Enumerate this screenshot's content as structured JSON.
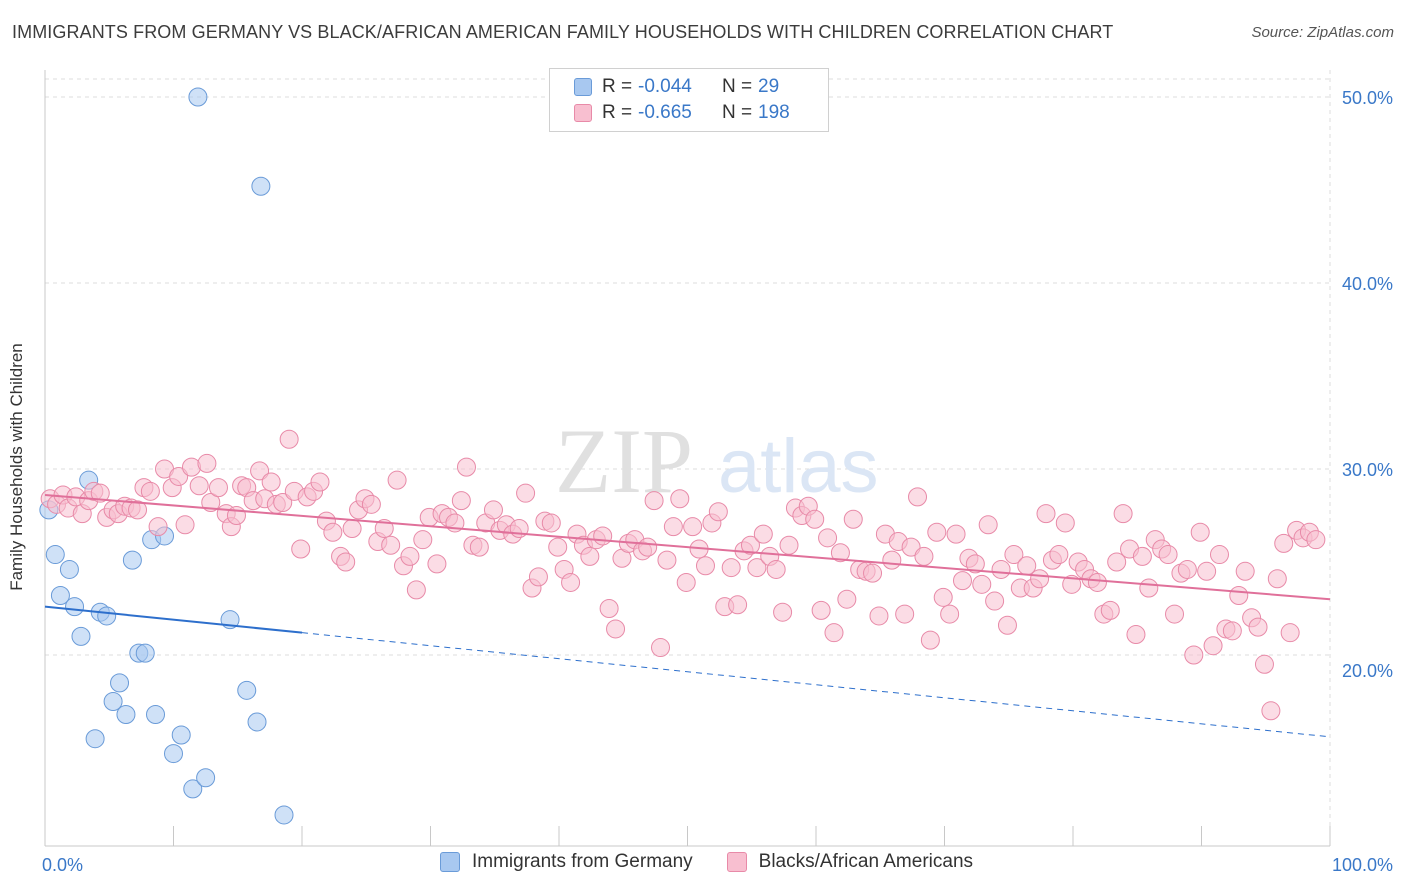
{
  "header": {
    "title": "IMMIGRANTS FROM GERMANY VS BLACK/AFRICAN AMERICAN FAMILY HOUSEHOLDS WITH CHILDREN CORRELATION CHART",
    "source": "Source: ZipAtlas.com"
  },
  "watermark": {
    "zip": "ZIP",
    "atlas": "atlas"
  },
  "legend": {
    "rows": [
      {
        "r_label": "R =",
        "r_value": "-0.044",
        "n_label": "N =",
        "n_value": "29",
        "color": "#a8c8f0",
        "border": "#6a9bd8"
      },
      {
        "r_label": "R =",
        "r_value": "-0.665",
        "n_label": "N =",
        "n_value": "198",
        "color": "#f8bfd0",
        "border": "#e88aa8"
      }
    ]
  },
  "bottom_legend": {
    "items": [
      {
        "label": "Immigrants from Germany",
        "color": "#a8c8f0",
        "border": "#6a9bd8"
      },
      {
        "label": "Blacks/African Americans",
        "color": "#f8bfd0",
        "border": "#e88aa8"
      }
    ]
  },
  "chart_data": {
    "type": "scatter",
    "title": "IMMIGRANTS FROM GERMANY VS BLACK/AFRICAN AMERICAN FAMILY HOUSEHOLDS WITH CHILDREN CORRELATION CHART",
    "xlabel": "",
    "ylabel": "Family Households with Children",
    "xlim": [
      0,
      100
    ],
    "ylim": [
      10,
      52
    ],
    "x_ticks": [
      {
        "value": 0,
        "label": "0.0%"
      },
      {
        "value": 100,
        "label": "100.0%"
      }
    ],
    "x_minor_ticks": [
      10,
      20,
      30,
      40,
      50,
      60,
      70,
      80,
      90
    ],
    "y_ticks": [
      {
        "value": 20,
        "label": "20.0%"
      },
      {
        "value": 30,
        "label": "30.0%"
      },
      {
        "value": 40,
        "label": "40.0%"
      },
      {
        "value": 50,
        "label": "50.0%"
      }
    ],
    "grid": true,
    "series": [
      {
        "name": "Immigrants from Germany",
        "color": "#a8c8f0",
        "stroke": "#6a9bd8",
        "line_color": "#2d6fcc",
        "trend": {
          "x0": 0,
          "y0": 22.6,
          "x1": 100,
          "y1": 15.6,
          "solid_until": 20
        },
        "points": [
          [
            0.3,
            27.8
          ],
          [
            0.8,
            25.4
          ],
          [
            1.2,
            23.2
          ],
          [
            1.9,
            24.6
          ],
          [
            2.3,
            22.6
          ],
          [
            2.8,
            21.0
          ],
          [
            3.4,
            29.4
          ],
          [
            3.9,
            15.5
          ],
          [
            4.3,
            22.3
          ],
          [
            4.8,
            22.1
          ],
          [
            5.3,
            17.5
          ],
          [
            5.8,
            18.5
          ],
          [
            6.3,
            16.8
          ],
          [
            6.8,
            25.1
          ],
          [
            7.3,
            20.1
          ],
          [
            7.8,
            20.1
          ],
          [
            8.3,
            26.2
          ],
          [
            8.6,
            16.8
          ],
          [
            9.3,
            26.4
          ],
          [
            10.0,
            14.7
          ],
          [
            10.6,
            15.7
          ],
          [
            11.5,
            12.8
          ],
          [
            11.9,
            50.0
          ],
          [
            12.5,
            13.4
          ],
          [
            14.4,
            21.9
          ],
          [
            15.7,
            18.1
          ],
          [
            16.5,
            16.4
          ],
          [
            16.8,
            45.2
          ],
          [
            18.6,
            11.4
          ]
        ]
      },
      {
        "name": "Blacks/African Americans",
        "color": "#f8bfd0",
        "stroke": "#e88aa8",
        "line_color": "#e0709a",
        "trend": {
          "x0": 0,
          "y0": 28.6,
          "x1": 100,
          "y1": 23.0,
          "solid_until": 100
        },
        "points": [
          [
            0.4,
            28.4
          ],
          [
            0.9,
            28.1
          ],
          [
            1.4,
            28.6
          ],
          [
            1.8,
            27.9
          ],
          [
            2.4,
            28.5
          ],
          [
            2.9,
            27.6
          ],
          [
            3.4,
            28.3
          ],
          [
            3.8,
            28.8
          ],
          [
            4.3,
            28.7
          ],
          [
            4.8,
            27.4
          ],
          [
            5.3,
            27.8
          ],
          [
            5.7,
            27.6
          ],
          [
            6.2,
            28.0
          ],
          [
            6.7,
            27.9
          ],
          [
            7.2,
            27.8
          ],
          [
            7.7,
            29.0
          ],
          [
            8.2,
            28.8
          ],
          [
            8.8,
            26.9
          ],
          [
            9.3,
            30.0
          ],
          [
            9.9,
            29.0
          ],
          [
            10.4,
            29.6
          ],
          [
            10.9,
            27.0
          ],
          [
            11.4,
            30.1
          ],
          [
            12.0,
            29.1
          ],
          [
            12.6,
            30.3
          ],
          [
            12.9,
            28.2
          ],
          [
            13.5,
            29.0
          ],
          [
            14.1,
            27.6
          ],
          [
            14.5,
            26.9
          ],
          [
            14.9,
            27.5
          ],
          [
            15.3,
            29.1
          ],
          [
            15.7,
            29.0
          ],
          [
            16.2,
            28.3
          ],
          [
            16.7,
            29.9
          ],
          [
            17.1,
            28.4
          ],
          [
            17.6,
            29.3
          ],
          [
            18.0,
            28.1
          ],
          [
            18.5,
            28.2
          ],
          [
            19.0,
            31.6
          ],
          [
            19.4,
            28.8
          ],
          [
            19.9,
            25.7
          ],
          [
            20.4,
            28.5
          ],
          [
            20.9,
            28.8
          ],
          [
            21.4,
            29.3
          ],
          [
            21.9,
            27.2
          ],
          [
            22.4,
            26.6
          ],
          [
            23.0,
            25.3
          ],
          [
            23.4,
            25.0
          ],
          [
            23.9,
            26.8
          ],
          [
            24.4,
            27.8
          ],
          [
            24.9,
            28.4
          ],
          [
            25.4,
            28.1
          ],
          [
            25.9,
            26.1
          ],
          [
            26.4,
            26.8
          ],
          [
            26.9,
            25.9
          ],
          [
            27.4,
            29.4
          ],
          [
            27.9,
            24.8
          ],
          [
            28.4,
            25.3
          ],
          [
            28.9,
            23.5
          ],
          [
            29.4,
            26.2
          ],
          [
            29.9,
            27.4
          ],
          [
            30.5,
            24.9
          ],
          [
            30.9,
            27.6
          ],
          [
            31.4,
            27.4
          ],
          [
            31.9,
            27.1
          ],
          [
            32.4,
            28.3
          ],
          [
            32.8,
            30.1
          ],
          [
            33.3,
            25.9
          ],
          [
            33.8,
            25.8
          ],
          [
            34.3,
            27.1
          ],
          [
            34.9,
            27.8
          ],
          [
            35.4,
            26.7
          ],
          [
            35.9,
            27.0
          ],
          [
            36.4,
            26.5
          ],
          [
            36.9,
            26.8
          ],
          [
            37.4,
            28.7
          ],
          [
            37.9,
            23.6
          ],
          [
            38.4,
            24.2
          ],
          [
            38.9,
            27.2
          ],
          [
            39.4,
            27.1
          ],
          [
            39.9,
            25.8
          ],
          [
            40.4,
            24.6
          ],
          [
            40.9,
            23.9
          ],
          [
            41.4,
            26.5
          ],
          [
            41.9,
            25.9
          ],
          [
            42.4,
            25.3
          ],
          [
            42.9,
            26.2
          ],
          [
            43.4,
            26.4
          ],
          [
            43.9,
            22.5
          ],
          [
            44.4,
            21.4
          ],
          [
            44.9,
            25.2
          ],
          [
            45.4,
            26.0
          ],
          [
            45.9,
            26.2
          ],
          [
            46.5,
            25.6
          ],
          [
            46.9,
            25.8
          ],
          [
            47.4,
            28.3
          ],
          [
            47.9,
            20.4
          ],
          [
            48.4,
            25.1
          ],
          [
            48.9,
            26.9
          ],
          [
            49.4,
            28.4
          ],
          [
            49.9,
            23.9
          ],
          [
            50.4,
            26.9
          ],
          [
            50.9,
            25.7
          ],
          [
            51.4,
            24.8
          ],
          [
            51.9,
            27.1
          ],
          [
            52.4,
            27.7
          ],
          [
            52.9,
            22.6
          ],
          [
            53.4,
            24.7
          ],
          [
            53.9,
            22.7
          ],
          [
            54.4,
            25.6
          ],
          [
            54.9,
            25.9
          ],
          [
            55.4,
            24.7
          ],
          [
            55.9,
            26.5
          ],
          [
            56.4,
            25.3
          ],
          [
            56.9,
            24.6
          ],
          [
            57.4,
            22.3
          ],
          [
            57.9,
            25.9
          ],
          [
            58.4,
            27.9
          ],
          [
            58.9,
            27.5
          ],
          [
            59.4,
            28.0
          ],
          [
            59.9,
            27.3
          ],
          [
            60.4,
            22.4
          ],
          [
            60.9,
            26.3
          ],
          [
            61.4,
            21.2
          ],
          [
            61.9,
            25.5
          ],
          [
            62.4,
            23.0
          ],
          [
            62.9,
            27.3
          ],
          [
            63.4,
            24.6
          ],
          [
            63.9,
            24.5
          ],
          [
            64.4,
            24.4
          ],
          [
            64.9,
            22.1
          ],
          [
            65.4,
            26.5
          ],
          [
            65.9,
            25.1
          ],
          [
            66.4,
            26.1
          ],
          [
            66.9,
            22.2
          ],
          [
            67.4,
            25.8
          ],
          [
            67.9,
            28.5
          ],
          [
            68.4,
            25.3
          ],
          [
            68.9,
            20.8
          ],
          [
            69.4,
            26.6
          ],
          [
            69.9,
            23.1
          ],
          [
            70.4,
            22.2
          ],
          [
            70.9,
            26.5
          ],
          [
            71.4,
            24.0
          ],
          [
            71.9,
            25.2
          ],
          [
            72.4,
            24.9
          ],
          [
            72.9,
            23.8
          ],
          [
            73.4,
            27.0
          ],
          [
            73.9,
            22.9
          ],
          [
            74.4,
            24.6
          ],
          [
            74.9,
            21.6
          ],
          [
            75.4,
            25.4
          ],
          [
            75.9,
            23.6
          ],
          [
            76.4,
            24.8
          ],
          [
            76.9,
            23.6
          ],
          [
            77.4,
            24.1
          ],
          [
            77.9,
            27.6
          ],
          [
            78.4,
            25.1
          ],
          [
            78.9,
            25.4
          ],
          [
            79.4,
            27.1
          ],
          [
            79.9,
            23.8
          ],
          [
            80.4,
            25.0
          ],
          [
            80.9,
            24.6
          ],
          [
            81.4,
            24.1
          ],
          [
            81.9,
            23.9
          ],
          [
            82.4,
            22.2
          ],
          [
            82.9,
            22.4
          ],
          [
            83.4,
            25.0
          ],
          [
            83.9,
            27.6
          ],
          [
            84.4,
            25.7
          ],
          [
            84.9,
            21.1
          ],
          [
            85.4,
            25.3
          ],
          [
            85.9,
            23.6
          ],
          [
            86.4,
            26.2
          ],
          [
            86.9,
            25.7
          ],
          [
            87.4,
            25.4
          ],
          [
            87.9,
            22.2
          ],
          [
            88.4,
            24.4
          ],
          [
            88.9,
            24.6
          ],
          [
            89.4,
            20.0
          ],
          [
            89.9,
            26.6
          ],
          [
            90.4,
            24.5
          ],
          [
            90.9,
            20.5
          ],
          [
            91.4,
            25.4
          ],
          [
            91.9,
            21.4
          ],
          [
            92.4,
            21.3
          ],
          [
            92.9,
            23.2
          ],
          [
            93.4,
            24.5
          ],
          [
            93.9,
            22.0
          ],
          [
            94.4,
            21.5
          ],
          [
            94.9,
            19.5
          ],
          [
            95.4,
            17.0
          ],
          [
            95.9,
            24.1
          ],
          [
            96.4,
            26.0
          ],
          [
            96.9,
            21.2
          ],
          [
            97.4,
            26.7
          ],
          [
            97.9,
            26.3
          ],
          [
            98.4,
            26.6
          ],
          [
            98.9,
            26.2
          ]
        ]
      }
    ]
  }
}
